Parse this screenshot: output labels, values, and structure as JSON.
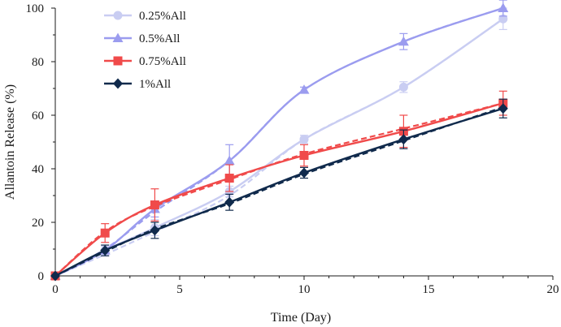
{
  "chart_data": {
    "type": "line",
    "xlabel": "Time (Day)",
    "ylabel": "Allantoin Release (%)",
    "xlim": [
      0,
      20
    ],
    "ylim": [
      0,
      100
    ],
    "xticks": [
      0,
      5,
      10,
      15,
      20
    ],
    "yticks": [
      0,
      20,
      40,
      60,
      80,
      100
    ],
    "grid": false,
    "legend_position": "top-left",
    "series": [
      {
        "name": "0.25%All",
        "color": "#c9cdf2",
        "marker": "circle",
        "x": [
          0,
          2,
          4,
          7,
          10,
          14,
          18
        ],
        "y": [
          0,
          9.5,
          18,
          31.5,
          51,
          70.5,
          96
        ],
        "err": [
          0,
          1.5,
          3,
          2,
          1.5,
          2,
          4
        ],
        "fit": [
          0,
          8,
          16.5,
          30,
          51,
          70.5,
          96
        ]
      },
      {
        "name": "0.5%All",
        "color": "#9b9cef",
        "marker": "triangle",
        "x": [
          0,
          2,
          4,
          7,
          10,
          14,
          18
        ],
        "y": [
          0,
          9.5,
          25,
          43,
          69.5,
          87.5,
          100
        ],
        "err": [
          0,
          2,
          3,
          6,
          1,
          3,
          3
        ],
        "fit": [
          0,
          10,
          24,
          43,
          69.5,
          87.5,
          100
        ]
      },
      {
        "name": "0.75%All",
        "color": "#f04a4a",
        "marker": "square",
        "x": [
          0,
          2,
          4,
          7,
          10,
          14,
          18
        ],
        "y": [
          0,
          16,
          26.5,
          36.5,
          45,
          54,
          64.5
        ],
        "err": [
          0,
          3.5,
          6,
          5,
          4,
          6,
          4.5
        ],
        "fit": [
          0,
          16.5,
          26,
          36,
          45.5,
          55,
          64.5
        ]
      },
      {
        "name": "1%All",
        "color": "#102a4c",
        "marker": "diamond",
        "x": [
          0,
          2,
          4,
          7,
          10,
          14,
          18
        ],
        "y": [
          0,
          9.5,
          17,
          27.5,
          38.5,
          51,
          62.5
        ],
        "err": [
          0,
          2,
          3,
          3,
          2,
          3.5,
          3.5
        ],
        "fit": [
          0,
          9,
          17.5,
          27,
          38,
          50.5,
          63
        ]
      }
    ]
  }
}
